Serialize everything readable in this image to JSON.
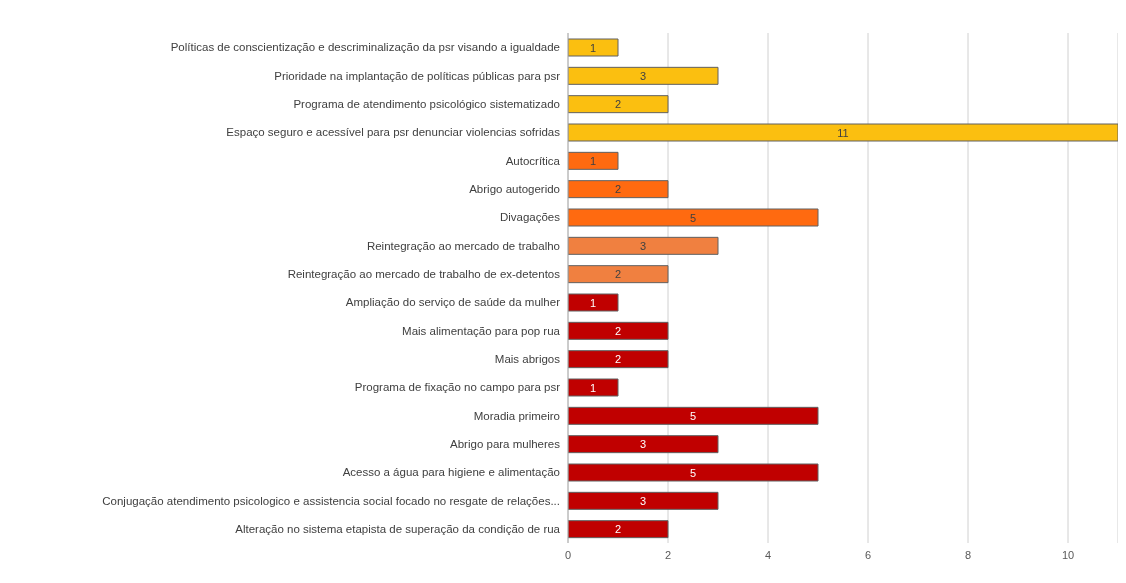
{
  "chart_data": {
    "type": "bar",
    "orientation": "horizontal",
    "categories": [
      "Políticas de conscientização e descriminalização da psr visando a igualdade",
      "Prioridade na implantação de políticas públicas para psr",
      "Programa de atendimento psicológico sistematizado",
      "Espaço seguro e acessível para psr denunciar violencias sofridas",
      "Autocrítica",
      "Abrigo autogerido",
      "Divagações",
      "Reintegração ao mercado de trabalho",
      "Reintegração ao mercado de trabalho de ex-detentos",
      "Ampliação do serviço de saúde da mulher",
      "Mais alimentação para pop rua",
      "Mais abrigos",
      "Programa de fixação no campo para psr",
      "Moradia primeiro",
      "Abrigo para mulheres",
      "Acesso a água para higiene e alimentação",
      "Conjugação atendimento psicologico e assistencia social focado no resgate de relações...",
      "Alteração no sistema etapista de superação da condição de rua"
    ],
    "values": [
      1,
      3,
      2,
      11,
      1,
      2,
      5,
      3,
      2,
      1,
      2,
      2,
      1,
      5,
      3,
      5,
      3,
      2
    ],
    "colors": [
      "#fbbf10",
      "#fbbf10",
      "#fbbf10",
      "#fbbf10",
      "#ff6a10",
      "#ff6a10",
      "#ff6a10",
      "#f08040",
      "#f08040",
      "#c00000",
      "#c00000",
      "#c00000",
      "#c00000",
      "#c00000",
      "#c00000",
      "#c00000",
      "#c00000",
      "#c00000"
    ],
    "xlim": [
      0,
      11
    ],
    "xticks": [
      0,
      2,
      4,
      6,
      8,
      10
    ],
    "grid": "x",
    "data_labels": true
  }
}
